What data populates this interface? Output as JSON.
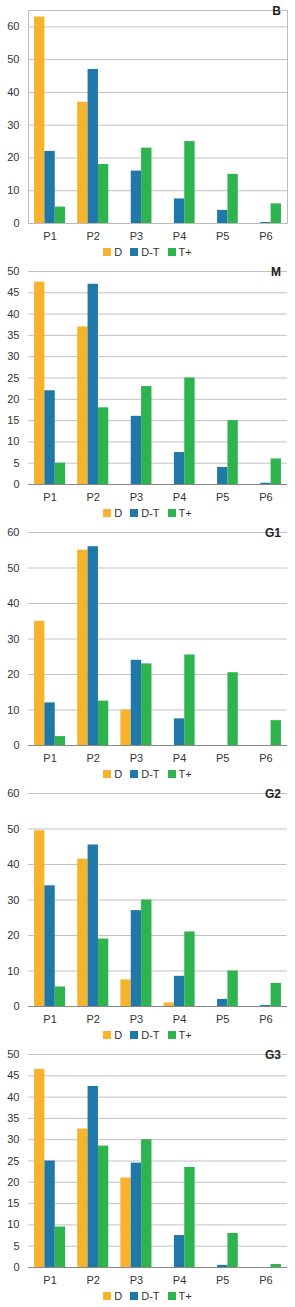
{
  "chart_data": [
    {
      "type": "bar",
      "title": "B",
      "categories": [
        "P1",
        "P2",
        "P3",
        "P4",
        "P5",
        "P6"
      ],
      "series": [
        {
          "name": "D",
          "color": "#f7b32b",
          "values": [
            63,
            37,
            0,
            0,
            0,
            0
          ]
        },
        {
          "name": "D-T",
          "color": "#1f78a8",
          "values": [
            22,
            47,
            16,
            7.5,
            4,
            0.3
          ]
        },
        {
          "name": "T+",
          "color": "#2fb34f",
          "values": [
            5,
            18,
            23,
            25,
            15,
            6
          ]
        }
      ],
      "ylim": [
        0,
        65
      ],
      "yticks": [
        0,
        10,
        20,
        30,
        40,
        50,
        60
      ],
      "grid": true,
      "legend": "bottom"
    },
    {
      "type": "bar",
      "title": "M",
      "categories": [
        "P1",
        "P2",
        "P3",
        "P4",
        "P5",
        "P6"
      ],
      "series": [
        {
          "name": "D",
          "color": "#f7b32b",
          "values": [
            47.5,
            37,
            0,
            0,
            0,
            0
          ]
        },
        {
          "name": "D-T",
          "color": "#1f78a8",
          "values": [
            22,
            47,
            16,
            7.5,
            4,
            0.3
          ]
        },
        {
          "name": "T+",
          "color": "#2fb34f",
          "values": [
            5,
            18,
            23,
            25,
            15,
            6
          ]
        }
      ],
      "ylim": [
        0,
        50
      ],
      "yticks": [
        0,
        5,
        10,
        15,
        20,
        25,
        30,
        35,
        40,
        45,
        50
      ],
      "grid": true,
      "legend": "bottom"
    },
    {
      "type": "bar",
      "title": "G1",
      "categories": [
        "P1",
        "P2",
        "P3",
        "P4",
        "P5",
        "P6"
      ],
      "series": [
        {
          "name": "D",
          "color": "#f7b32b",
          "values": [
            35,
            55,
            10,
            0,
            0,
            0
          ]
        },
        {
          "name": "D-T",
          "color": "#1f78a8",
          "values": [
            12,
            56,
            24,
            7.5,
            0,
            0
          ]
        },
        {
          "name": "T+",
          "color": "#2fb34f",
          "values": [
            2.5,
            12.5,
            23,
            25.5,
            20.5,
            7
          ]
        }
      ],
      "ylim": [
        0,
        60
      ],
      "yticks": [
        0,
        10,
        20,
        30,
        40,
        50,
        60
      ],
      "grid": true,
      "legend": "bottom"
    },
    {
      "type": "bar",
      "title": "G2",
      "categories": [
        "P1",
        "P2",
        "P3",
        "P4",
        "P5",
        "P6"
      ],
      "series": [
        {
          "name": "D",
          "color": "#f7b32b",
          "values": [
            49.5,
            41.5,
            7.5,
            1,
            0,
            0
          ]
        },
        {
          "name": "D-T",
          "color": "#1f78a8",
          "values": [
            34,
            45.5,
            27,
            8.5,
            2,
            0.3
          ]
        },
        {
          "name": "T+",
          "color": "#2fb34f",
          "values": [
            5.5,
            19,
            30,
            21,
            10,
            6.5
          ]
        }
      ],
      "ylim": [
        0,
        60
      ],
      "yticks": [
        0,
        10,
        20,
        30,
        40,
        50,
        60
      ],
      "grid": true,
      "legend": "bottom"
    },
    {
      "type": "bar",
      "title": "G3",
      "categories": [
        "P1",
        "P2",
        "P3",
        "P4",
        "P5",
        "P6"
      ],
      "series": [
        {
          "name": "D",
          "color": "#f7b32b",
          "values": [
            46.5,
            32.5,
            21,
            0,
            0,
            0
          ]
        },
        {
          "name": "D-T",
          "color": "#1f78a8",
          "values": [
            25,
            42.5,
            24.5,
            7.5,
            0.5,
            0
          ]
        },
        {
          "name": "T+",
          "color": "#2fb34f",
          "values": [
            9.5,
            28.5,
            30,
            23.5,
            8,
            0.7
          ]
        }
      ],
      "ylim": [
        0,
        50
      ],
      "yticks": [
        0,
        5,
        10,
        15,
        20,
        25,
        30,
        35,
        40,
        45,
        50
      ],
      "grid": true,
      "legend": "bottom"
    }
  ]
}
